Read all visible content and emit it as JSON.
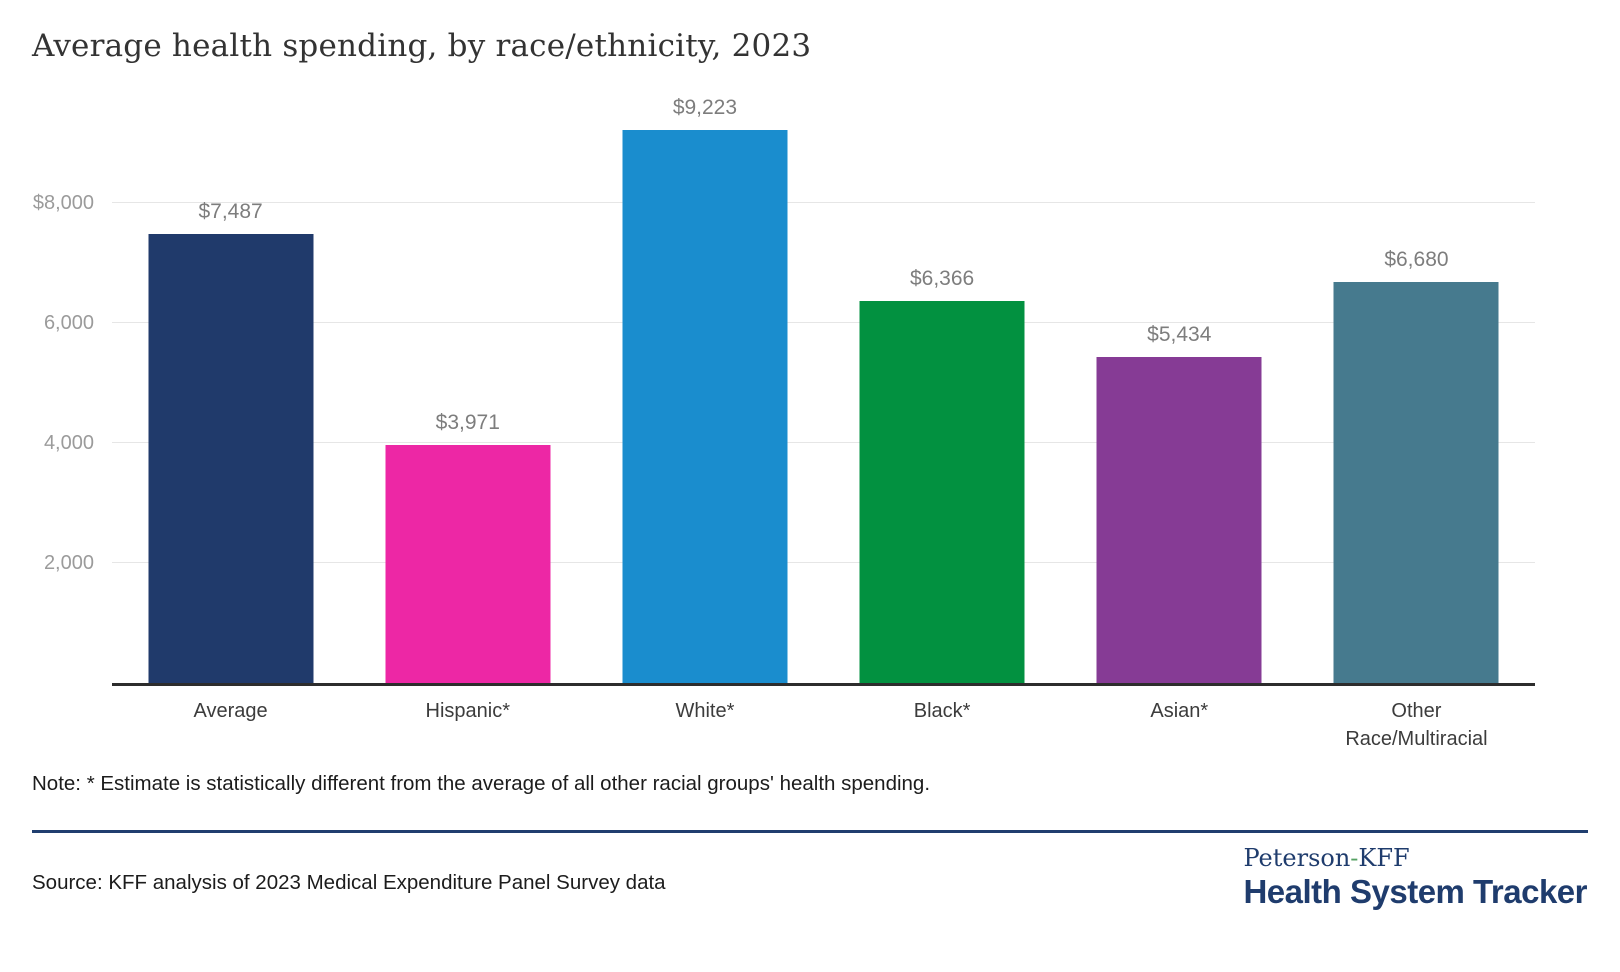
{
  "title": "Average health spending, by race/ethnicity, 2023",
  "chart_data": {
    "type": "bar",
    "title": "Average health spending, by race/ethnicity, 2023",
    "categories": [
      "Average",
      "Hispanic*",
      "White*",
      "Black*",
      "Asian*",
      "Other\nRace/Multiracial"
    ],
    "values": [
      7487,
      3971,
      9223,
      6366,
      5434,
      6680
    ],
    "value_labels": [
      "$7,487",
      "$3,971",
      "$9,223",
      "$6,366",
      "$5,434",
      "$6,680"
    ],
    "bar_colors": [
      "#203a6b",
      "#ed27a5",
      "#1a8dce",
      "#029140",
      "#863b95",
      "#467a8e"
    ],
    "y_ticks": [
      {
        "value": 2000,
        "label": "2,000"
      },
      {
        "value": 4000,
        "label": "4,000"
      },
      {
        "value": 6000,
        "label": "6,000"
      },
      {
        "value": 8000,
        "label": "$8,000"
      }
    ],
    "ylim": [
      0,
      9970
    ],
    "xlabel": "",
    "ylabel": "",
    "grid": "horizontal",
    "legend": "none",
    "gridline_color": "#e6e6e6",
    "axis_line_color": "#2d2d2d",
    "value_label_color": "#7d7d7d",
    "tick_label_color": "#9b9b9b",
    "category_label_color": "#3c3c3c"
  },
  "note": "Note: * Estimate is statistically different from the average of all other racial groups' health spending.",
  "source": "Source: KFF analysis of 2023 Medical Expenditure Panel Survey data",
  "logo": {
    "peterson": "Peterson",
    "hyphen": "-",
    "kff": "KFF",
    "tracker": "Health System Tracker",
    "brand_color": "#1f3c6d",
    "hyphen_color": "#55a163"
  }
}
